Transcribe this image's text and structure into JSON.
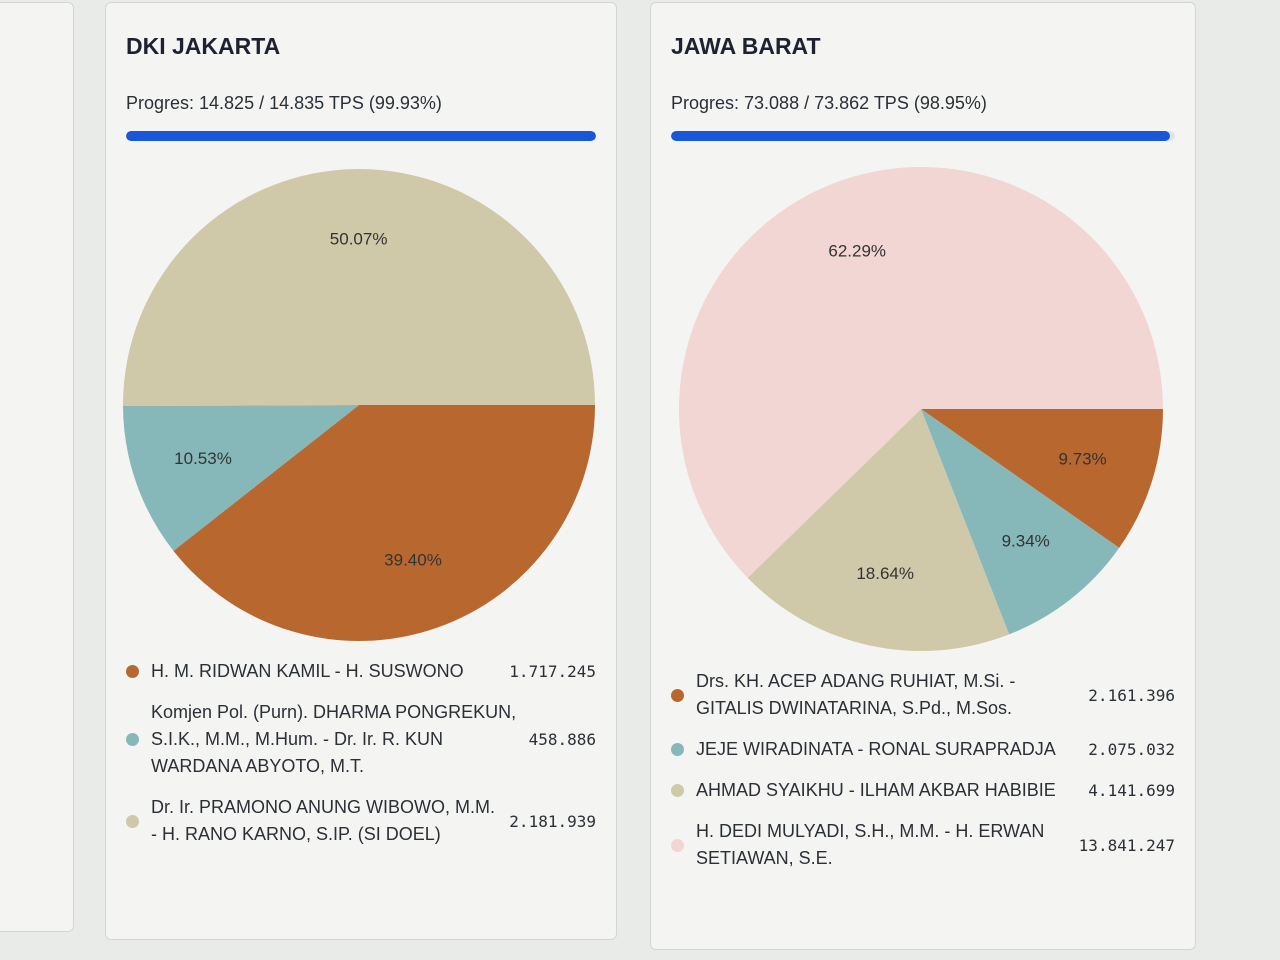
{
  "chart_data": [
    {
      "type": "pie",
      "title": "DKI JAKARTA",
      "subtitle": "Progres: 14.825 / 14.835 TPS (99.93%)",
      "progress": 99.93,
      "categories": [
        "H. M. RIDWAN KAMIL - H. SUSWONO",
        "Komjen Pol. (Purn). DHARMA PONGREKUN, S.I.K., M.M., M.Hum. - Dr. Ir. R. KUN WARDANA ABYOTO, M.T.",
        "Dr. Ir. PRAMONO ANUNG WIBOWO, M.M. - H. RANO KARNO, S.IP. (SI DOEL)"
      ],
      "values": [
        39.4,
        10.53,
        50.07
      ],
      "value_labels": [
        "39.40%",
        "10.53%",
        "50.07%"
      ],
      "legend_values": [
        "1.717.245",
        "458.886",
        "2.181.939"
      ],
      "colors": [
        "#b8682f",
        "#86b8ba",
        "#cfc8a9"
      ]
    },
    {
      "type": "pie",
      "title": "JAWA BARAT",
      "subtitle": "Progres: 73.088 / 73.862 TPS (98.95%)",
      "progress": 98.95,
      "categories": [
        "Drs. KH. ACEP ADANG RUHIAT, M.Si. - GITALIS DWINATARINA, S.Pd., M.Sos.",
        "JEJE WIRADINATA - RONAL SURAPRADJA",
        "AHMAD SYAIKHU - ILHAM AKBAR HABIBIE",
        "H. DEDI MULYADI, S.H., M.M. - H. ERWAN SETIAWAN, S.E."
      ],
      "values": [
        9.73,
        9.34,
        18.64,
        62.29
      ],
      "value_labels": [
        "9.73%",
        "9.34%",
        "18.64%",
        "62.29%"
      ],
      "legend_values": [
        "2.161.396",
        "2.075.032",
        "4.141.699",
        "13.841.247"
      ],
      "colors": [
        "#b8682f",
        "#86b8ba",
        "#cfc8a9",
        "#f1d6d3"
      ]
    }
  ]
}
